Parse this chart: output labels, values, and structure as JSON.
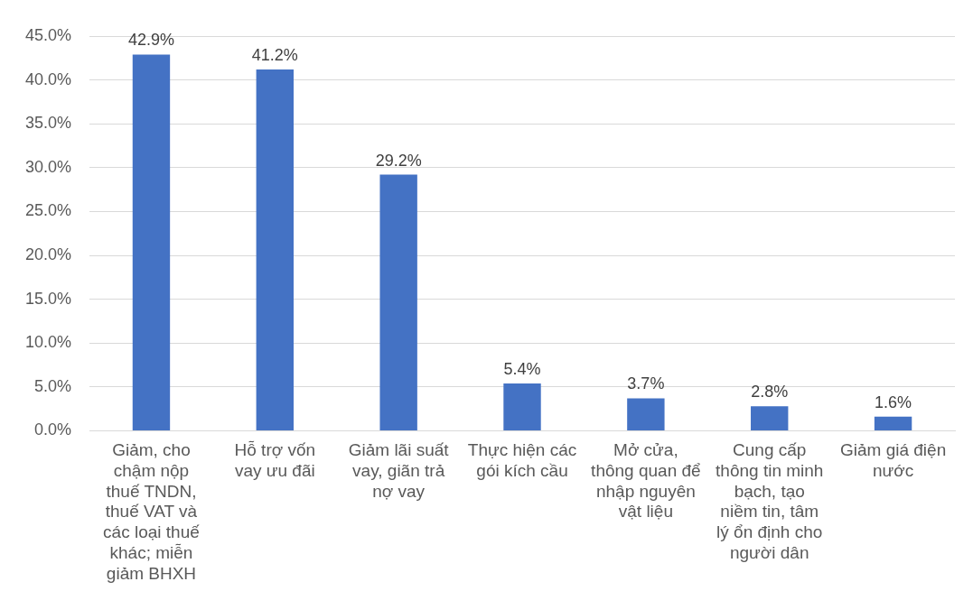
{
  "chart_data": {
    "type": "bar",
    "categories": [
      "Giảm, cho chậm nộp thuế TNDN, thuế VAT và các loại thuế khác; miễn giảm BHXH",
      "Hỗ trợ vốn vay ưu đãi",
      "Giảm lãi suất vay, giãn trả nợ vay",
      "Thực hiện các gói kích cầu",
      "Mở cửa, thông quan để nhập nguyên vật liệu",
      "Cung cấp thông tin minh bạch, tạo niềm tin, tâm lý ổn định cho người dân",
      "Giảm giá điện nước"
    ],
    "values": [
      42.9,
      41.2,
      29.2,
      5.4,
      3.7,
      2.8,
      1.6
    ],
    "value_labels": [
      "42.9%",
      "41.2%",
      "29.2%",
      "5.4%",
      "3.7%",
      "2.8%",
      "1.6%"
    ],
    "color": "#4472c4",
    "ylim": [
      0,
      45
    ],
    "yticks": [
      {
        "value": 0,
        "label": "0.0%"
      },
      {
        "value": 5,
        "label": "5.0%"
      },
      {
        "value": 10,
        "label": "10.0%"
      },
      {
        "value": 15,
        "label": "15.0%"
      },
      {
        "value": 20,
        "label": "20.0%"
      },
      {
        "value": 25,
        "label": "25.0%"
      },
      {
        "value": 30,
        "label": "30.0%"
      },
      {
        "value": 35,
        "label": "35.0%"
      },
      {
        "value": 40,
        "label": "40.0%"
      },
      {
        "value": 45,
        "label": "45.0%"
      }
    ],
    "grid": "y",
    "legend": false
  }
}
